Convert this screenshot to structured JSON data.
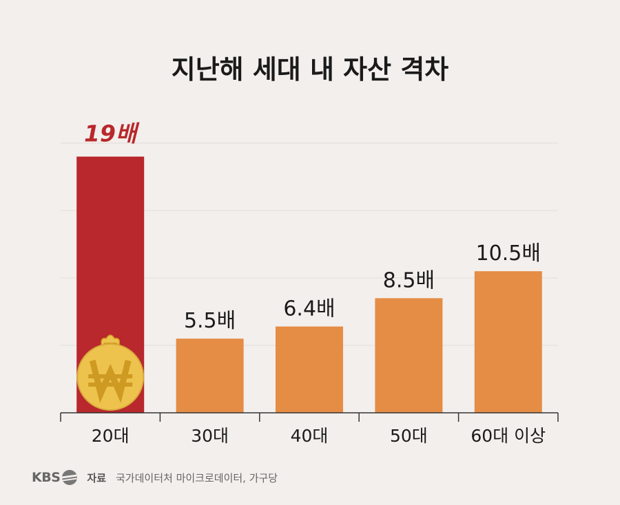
{
  "chart_data": {
    "type": "bar",
    "title": "지난해 세대 내 자산 격차",
    "categories": [
      "20대",
      "30대",
      "40대",
      "50대",
      "60대 이상"
    ],
    "values": [
      19,
      5.5,
      6.4,
      8.5,
      10.5
    ],
    "value_labels": [
      "19배",
      "5.5배",
      "6.4배",
      "8.5배",
      "10.5배"
    ],
    "highlight_index": 0,
    "ylim": [
      0,
      20
    ],
    "grid": true,
    "colors": {
      "highlight": "#b8282c",
      "bar": "#e58c45",
      "coin": "#edc34e",
      "coin_symbol": "#cf9a22"
    },
    "coin_icon": "won-money-bag-icon"
  },
  "footer": {
    "logo": "KBS",
    "source_label": "자료",
    "source_text": "국가데이터처 마이크로데이터, 가구당"
  }
}
